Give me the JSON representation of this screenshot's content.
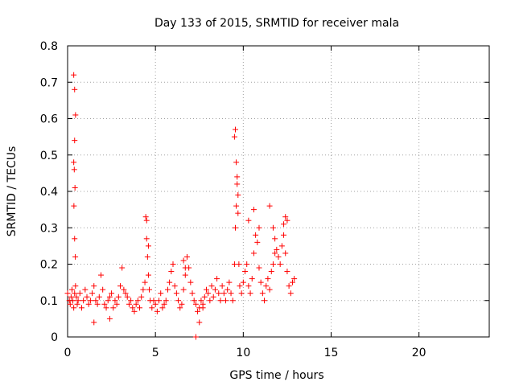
{
  "chart_data": {
    "type": "scatter",
    "title": "Day 133 of 2015, SRMTID for receiver mala",
    "xlabel": "GPS time / hours",
    "ylabel": "SRMTID / TECUs",
    "xlim": [
      0,
      24
    ],
    "ylim": [
      0,
      0.8
    ],
    "xticks": [
      0,
      5,
      10,
      15,
      20
    ],
    "xtick_labels": [
      "0",
      "5",
      "10",
      "15",
      "20"
    ],
    "yticks": [
      0,
      0.1,
      0.2,
      0.3,
      0.4,
      0.5,
      0.6,
      0.7,
      0.8
    ],
    "ytick_labels": [
      "0",
      "0.1",
      "0.2",
      "0.3",
      "0.4",
      "0.5",
      "0.6",
      "0.7",
      "0.8"
    ],
    "grid": true,
    "marker": "+",
    "color": "#ff0000",
    "series": [
      {
        "name": "SRMTID",
        "x": [
          0.0,
          0.1,
          0.15,
          0.2,
          0.25,
          0.3,
          0.35,
          0.4,
          0.45,
          0.5,
          0.55,
          0.6,
          0.7,
          0.8,
          0.9,
          1.0,
          1.1,
          1.2,
          1.3,
          1.4,
          1.5,
          1.6,
          1.7,
          1.8,
          1.9,
          2.0,
          2.1,
          2.2,
          2.3,
          2.4,
          2.5,
          2.6,
          2.7,
          2.8,
          2.9,
          3.0,
          3.1,
          3.2,
          3.3,
          3.4,
          3.5,
          3.6,
          3.7,
          3.8,
          3.9,
          4.0,
          4.1,
          4.2,
          4.3,
          4.4,
          4.5,
          4.55,
          4.6,
          4.65,
          4.7,
          4.8,
          4.9,
          5.0,
          5.1,
          5.2,
          5.3,
          5.4,
          5.5,
          5.6,
          5.7,
          5.8,
          5.9,
          6.0,
          6.1,
          6.2,
          6.3,
          6.4,
          6.5,
          6.6,
          6.7,
          6.8,
          6.9,
          7.0,
          7.1,
          7.2,
          7.3,
          7.4,
          7.5,
          7.6,
          7.7,
          7.8,
          7.9,
          8.0,
          8.1,
          8.2,
          8.3,
          8.4,
          8.5,
          8.6,
          8.7,
          8.8,
          8.9,
          9.0,
          9.1,
          9.2,
          9.3,
          9.4,
          9.5,
          9.55,
          9.6,
          9.65,
          9.7,
          9.75,
          9.8,
          9.9,
          10.0,
          10.1,
          10.2,
          10.3,
          10.4,
          10.5,
          10.6,
          10.7,
          10.8,
          10.9,
          11.0,
          11.1,
          11.2,
          11.3,
          11.4,
          11.5,
          11.6,
          11.7,
          11.8,
          11.9,
          12.0,
          12.1,
          12.2,
          12.3,
          12.4,
          12.5,
          12.6,
          12.7,
          12.8,
          12.9,
          0.35,
          0.4,
          0.45,
          0.4,
          0.35,
          0.38,
          0.42,
          0.36,
          0.4,
          0.44,
          1.5,
          2.4,
          4.45,
          4.5,
          4.6,
          6.6,
          6.7,
          7.3,
          7.5,
          7.7,
          9.5,
          9.55,
          9.6,
          9.65,
          9.7,
          10.3,
          10.6,
          10.9,
          11.5,
          11.7,
          11.8,
          12.3,
          12.4,
          12.5
        ],
        "y": [
          0.12,
          0.1,
          0.09,
          0.11,
          0.13,
          0.1,
          0.08,
          0.12,
          0.14,
          0.11,
          0.09,
          0.1,
          0.12,
          0.08,
          0.1,
          0.13,
          0.11,
          0.09,
          0.1,
          0.12,
          0.14,
          0.1,
          0.09,
          0.11,
          0.17,
          0.13,
          0.09,
          0.08,
          0.1,
          0.11,
          0.12,
          0.08,
          0.1,
          0.09,
          0.11,
          0.14,
          0.19,
          0.13,
          0.12,
          0.11,
          0.09,
          0.1,
          0.08,
          0.07,
          0.09,
          0.1,
          0.08,
          0.11,
          0.13,
          0.15,
          0.27,
          0.22,
          0.17,
          0.13,
          0.1,
          0.08,
          0.1,
          0.09,
          0.07,
          0.1,
          0.12,
          0.08,
          0.09,
          0.1,
          0.13,
          0.15,
          0.18,
          0.2,
          0.14,
          0.12,
          0.1,
          0.08,
          0.09,
          0.13,
          0.17,
          0.22,
          0.19,
          0.15,
          0.12,
          0.1,
          0.09,
          0.07,
          0.08,
          0.1,
          0.09,
          0.11,
          0.13,
          0.12,
          0.1,
          0.14,
          0.11,
          0.13,
          0.16,
          0.12,
          0.1,
          0.14,
          0.12,
          0.1,
          0.13,
          0.15,
          0.12,
          0.1,
          0.2,
          0.3,
          0.36,
          0.42,
          0.34,
          0.2,
          0.14,
          0.12,
          0.15,
          0.18,
          0.2,
          0.14,
          0.12,
          0.16,
          0.23,
          0.28,
          0.26,
          0.19,
          0.15,
          0.12,
          0.1,
          0.14,
          0.16,
          0.13,
          0.18,
          0.2,
          0.23,
          0.24,
          0.22,
          0.2,
          0.25,
          0.28,
          0.23,
          0.18,
          0.14,
          0.12,
          0.15,
          0.16,
          0.72,
          0.68,
          0.61,
          0.54,
          0.48,
          0.46,
          0.41,
          0.36,
          0.27,
          0.22,
          0.04,
          0.05,
          0.33,
          0.32,
          0.25,
          0.21,
          0.19,
          0.0,
          0.04,
          0.08,
          0.55,
          0.57,
          0.48,
          0.44,
          0.39,
          0.32,
          0.35,
          0.3,
          0.36,
          0.3,
          0.27,
          0.31,
          0.33,
          0.32
        ]
      }
    ]
  }
}
